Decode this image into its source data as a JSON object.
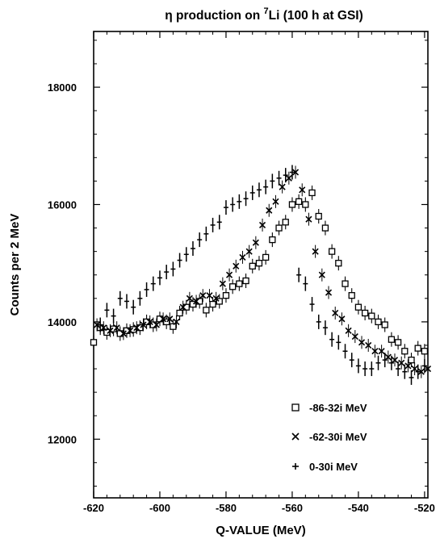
{
  "chart_data": {
    "type": "scatter",
    "title_prefix": "η production on ",
    "title_superscript": "7",
    "title_suffix": "Li (100 h at GSI)",
    "xlabel": "Q-VALUE (MeV)",
    "ylabel": "Counts per 2 MeV",
    "xlim": [
      -620,
      -519
    ],
    "ylim": [
      11000,
      18950
    ],
    "x_ticks": [
      -620,
      -600,
      -580,
      -560,
      -540,
      -520
    ],
    "y_ticks": [
      12000,
      14000,
      16000,
      18000
    ],
    "x_tick_labels": [
      "-620",
      "-600",
      "-580",
      "-560",
      "-540",
      "-520"
    ],
    "y_tick_labels": [
      "12000",
      "14000",
      "16000",
      "18000"
    ],
    "grid": false,
    "legend_position": "bottom-right",
    "series": [
      {
        "name": "-86-32i MeV",
        "marker": "square",
        "x": [
          -620,
          -618,
          -616,
          -614,
          -612,
          -610,
          -608,
          -606,
          -604,
          -602,
          -600,
          -598,
          -596,
          -594,
          -592,
          -590,
          -588,
          -586,
          -584,
          -582,
          -580,
          -578,
          -576,
          -574,
          -572,
          -570,
          -568,
          -566,
          -564,
          -562,
          -560,
          -558,
          -556,
          -554,
          -552,
          -550,
          -548,
          -546,
          -544,
          -542,
          -540,
          -538,
          -536,
          -534,
          -532,
          -530,
          -528,
          -526,
          -524,
          -522,
          -520
        ],
        "y": [
          13650,
          13900,
          13820,
          13880,
          13800,
          13850,
          13870,
          13900,
          14000,
          13950,
          14050,
          14000,
          13920,
          14150,
          14250,
          14300,
          14350,
          14200,
          14300,
          14350,
          14450,
          14600,
          14650,
          14700,
          14950,
          15000,
          15100,
          15400,
          15600,
          15700,
          16000,
          16050,
          16000,
          16200,
          15800,
          15600,
          15200,
          15000,
          14650,
          14450,
          14250,
          14150,
          14100,
          14000,
          13950,
          13700,
          13650,
          13500,
          13350,
          13550,
          13500
        ]
      },
      {
        "name": "-62-30i MeV",
        "marker": "x",
        "x": [
          -619,
          -617,
          -615,
          -613,
          -611,
          -609,
          -607,
          -605,
          -603,
          -601,
          -599,
          -597,
          -595,
          -593,
          -591,
          -589,
          -587,
          -585,
          -583,
          -581,
          -579,
          -577,
          -575,
          -573,
          -571,
          -569,
          -567,
          -565,
          -563,
          -561,
          -559,
          -557,
          -555,
          -553,
          -551,
          -549,
          -547,
          -545,
          -543,
          -541,
          -539,
          -537,
          -535,
          -533,
          -531,
          -529,
          -527,
          -525,
          -523,
          -521,
          -519
        ],
        "y": [
          13950,
          13900,
          13850,
          13900,
          13800,
          13850,
          13900,
          13950,
          14000,
          13950,
          14050,
          14050,
          14000,
          14250,
          14400,
          14350,
          14450,
          14450,
          14400,
          14650,
          14800,
          14950,
          15100,
          15200,
          15350,
          15650,
          15900,
          16050,
          16300,
          16450,
          16550,
          16250,
          15750,
          15200,
          14800,
          14500,
          14150,
          14050,
          13850,
          13750,
          13650,
          13600,
          13500,
          13500,
          13400,
          13350,
          13300,
          13250,
          13200,
          13150,
          13200
        ]
      },
      {
        "name": "0-30i MeV",
        "marker": "plus",
        "x": [
          -618,
          -616,
          -614,
          -612,
          -610,
          -608,
          -606,
          -604,
          -602,
          -600,
          -598,
          -596,
          -594,
          -592,
          -590,
          -588,
          -586,
          -584,
          -582,
          -580,
          -578,
          -576,
          -574,
          -572,
          -570,
          -568,
          -566,
          -564,
          -562,
          -560,
          -558,
          -556,
          -554,
          -552,
          -550,
          -548,
          -546,
          -544,
          -542,
          -540,
          -538,
          -536,
          -534,
          -532,
          -530,
          -528,
          -526,
          -524,
          -522,
          -520
        ],
        "y": [
          13950,
          14200,
          14100,
          14400,
          14350,
          14250,
          14400,
          14550,
          14650,
          14750,
          14850,
          14900,
          15050,
          15150,
          15250,
          15400,
          15500,
          15650,
          15700,
          15950,
          16000,
          16050,
          16100,
          16200,
          16250,
          16300,
          16400,
          16450,
          16500,
          16550,
          14800,
          14650,
          14300,
          14000,
          13900,
          13700,
          13650,
          13500,
          13350,
          13250,
          13200,
          13200,
          13300,
          13350,
          13300,
          13200,
          13150,
          13050,
          13150,
          13250
        ]
      }
    ]
  }
}
